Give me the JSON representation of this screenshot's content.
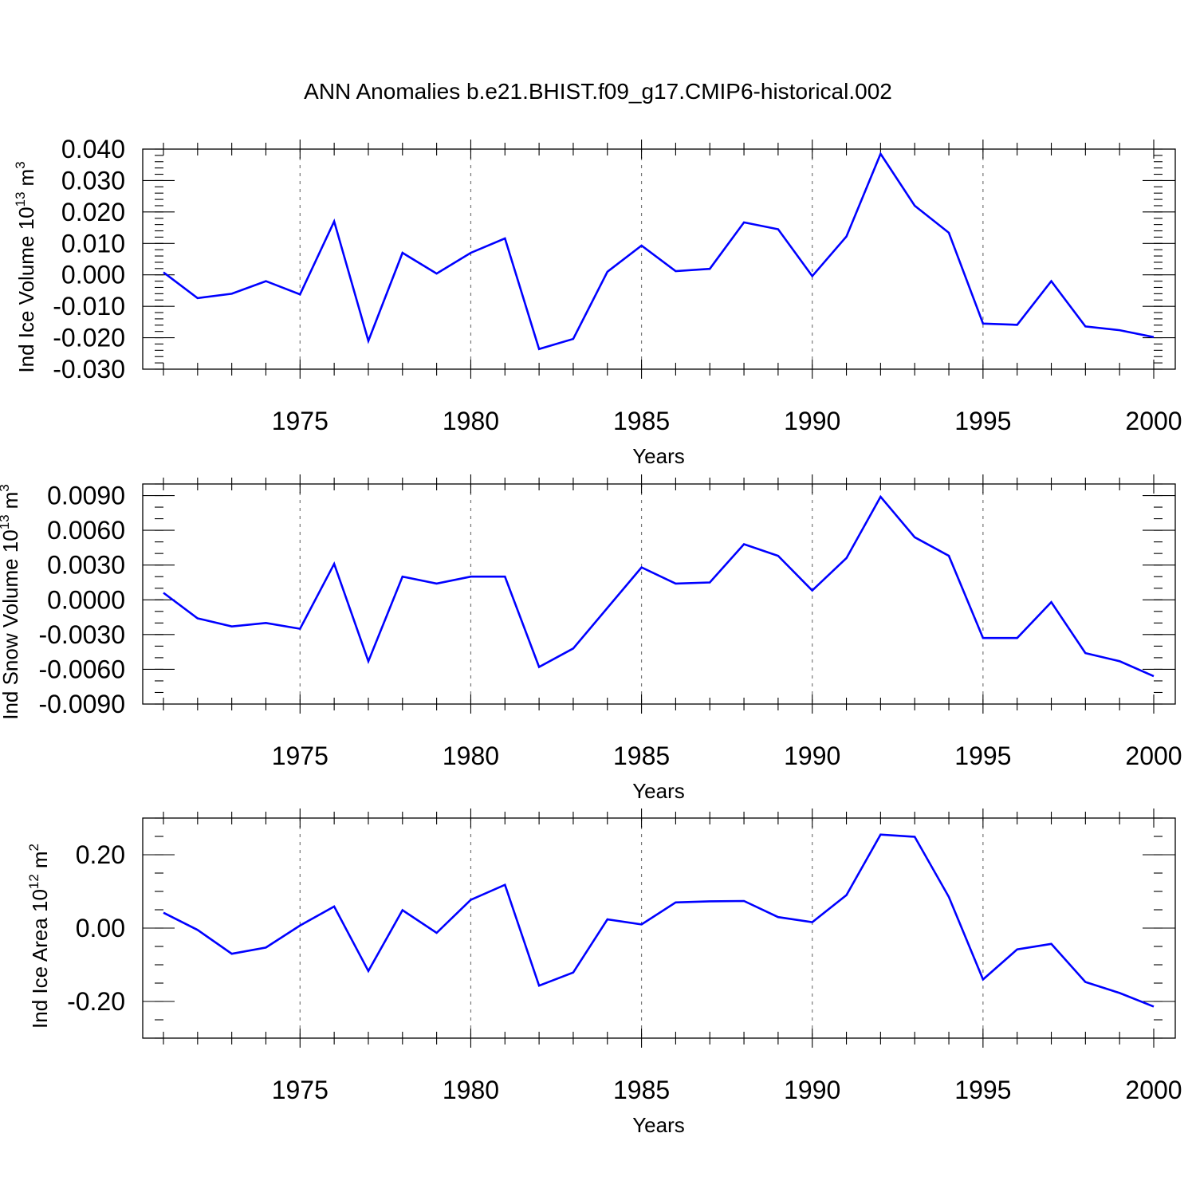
{
  "title": "ANN Anomalies b.e21.BHIST.f09_g17.CMIP6-historical.002",
  "colors": {
    "line": "#0000ff",
    "axes": "#000000",
    "grid": "#777777"
  },
  "chart_data": [
    {
      "type": "line",
      "ylabel": {
        "text": "Ind Ice Volume 10",
        "exp": "13",
        "unit": "m",
        "unit_exp": "3"
      },
      "xlabel": "Years",
      "xlim": [
        1971,
        2000
      ],
      "ylim": [
        -0.03,
        0.04
      ],
      "grid": "dashed vertical lines at major x ticks",
      "yticks": [
        -0.03,
        -0.02,
        -0.01,
        0.0,
        0.01,
        0.02,
        0.03,
        0.04
      ],
      "ytick_labels": [
        "-0.030",
        "-0.020",
        "-0.010",
        "0.000",
        "0.010",
        "0.020",
        "0.030",
        "0.040"
      ],
      "yminor_step": 0.002,
      "xticks": [
        1975,
        1980,
        1985,
        1990,
        1995,
        2000
      ],
      "xtick_labels": [
        "1975",
        "1980",
        "1985",
        "1990",
        "1995",
        "2000"
      ],
      "x": [
        1971,
        1972,
        1973,
        1974,
        1975,
        1976,
        1977,
        1978,
        1979,
        1980,
        1981,
        1982,
        1983,
        1984,
        1985,
        1986,
        1987,
        1988,
        1989,
        1990,
        1991,
        1992,
        1993,
        1994,
        1995,
        1996,
        1997,
        1998,
        1999,
        2000
      ],
      "series": [
        {
          "values": [
            0.0008,
            -0.0074,
            -0.006,
            -0.002,
            -0.0062,
            0.017,
            -0.021,
            0.007,
            0.0004,
            0.007,
            0.0116,
            -0.0236,
            -0.0204,
            0.001,
            0.0093,
            0.0012,
            0.0019,
            0.0167,
            0.0145,
            -0.0004,
            0.0122,
            0.0385,
            0.022,
            0.0134,
            -0.0155,
            -0.0159,
            -0.002,
            -0.0164,
            -0.0176,
            -0.0198
          ]
        }
      ]
    },
    {
      "type": "line",
      "ylabel": {
        "text": "Ind Snow Volume 10",
        "exp": "13",
        "unit": "m",
        "unit_exp": "3"
      },
      "xlabel": "Years",
      "xlim": [
        1971,
        2000
      ],
      "ylim": [
        -0.009,
        0.01
      ],
      "grid": "dashed vertical lines at major x ticks",
      "yticks": [
        -0.009,
        -0.006,
        -0.003,
        0.0,
        0.003,
        0.006,
        0.009
      ],
      "ytick_labels": [
        "-0.0090",
        "-0.0060",
        "-0.0030",
        "0.0000",
        "0.0030",
        "0.0060",
        "0.0090"
      ],
      "yminor_step": 0.001,
      "xticks": [
        1975,
        1980,
        1985,
        1990,
        1995,
        2000
      ],
      "xtick_labels": [
        "1975",
        "1980",
        "1985",
        "1990",
        "1995",
        "2000"
      ],
      "x": [
        1971,
        1972,
        1973,
        1974,
        1975,
        1976,
        1977,
        1978,
        1979,
        1980,
        1981,
        1982,
        1983,
        1984,
        1985,
        1986,
        1987,
        1988,
        1989,
        1990,
        1991,
        1992,
        1993,
        1994,
        1995,
        1996,
        1997,
        1998,
        1999,
        2000
      ],
      "series": [
        {
          "values": [
            0.0006,
            -0.0016,
            -0.0023,
            -0.002,
            -0.0025,
            0.0031,
            -0.0053,
            0.002,
            0.0014,
            0.002,
            0.002,
            -0.0058,
            -0.0042,
            -0.0007,
            0.0028,
            0.0014,
            0.0015,
            0.0048,
            0.0038,
            0.0008,
            0.0036,
            0.0089,
            0.0054,
            0.0038,
            -0.0033,
            -0.0033,
            -0.0002,
            -0.0046,
            -0.0053,
            -0.0066
          ]
        }
      ]
    },
    {
      "type": "line",
      "ylabel": {
        "text": "Ind Ice Area 10",
        "exp": "12",
        "unit": "m",
        "unit_exp": "2"
      },
      "xlabel": "Years",
      "xlim": [
        1971,
        2000
      ],
      "ylim": [
        -0.3,
        0.3
      ],
      "grid": "dashed vertical lines at major x ticks",
      "yticks": [
        -0.2,
        0.0,
        0.2
      ],
      "ytick_labels": [
        "-0.20",
        "0.00",
        "0.20"
      ],
      "yminor_step": 0.05,
      "xticks": [
        1975,
        1980,
        1985,
        1990,
        1995,
        2000
      ],
      "xtick_labels": [
        "1975",
        "1980",
        "1985",
        "1990",
        "1995",
        "2000"
      ],
      "x": [
        1971,
        1972,
        1973,
        1974,
        1975,
        1976,
        1977,
        1978,
        1979,
        1980,
        1981,
        1982,
        1983,
        1984,
        1985,
        1986,
        1987,
        1988,
        1989,
        1990,
        1991,
        1992,
        1993,
        1994,
        1995,
        1996,
        1997,
        1998,
        1999,
        2000
      ],
      "series": [
        {
          "values": [
            0.042,
            -0.005,
            -0.07,
            -0.053,
            0.007,
            0.059,
            -0.117,
            0.049,
            -0.013,
            0.077,
            0.118,
            -0.157,
            -0.121,
            0.024,
            0.01,
            0.07,
            0.073,
            0.074,
            0.03,
            0.016,
            0.09,
            0.255,
            0.249,
            0.085,
            -0.14,
            -0.058,
            -0.043,
            -0.147,
            -0.177,
            -0.214
          ]
        }
      ]
    }
  ]
}
